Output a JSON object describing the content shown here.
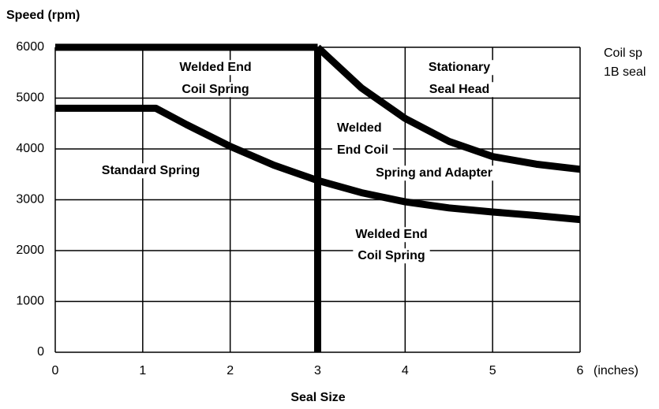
{
  "chart_data": {
    "type": "line",
    "y_label": "Speed (rpm)",
    "x_label": "Seal Size",
    "x_unit": "(inches)",
    "xlim": [
      0,
      6
    ],
    "xticks": [
      0,
      1,
      2,
      3,
      4,
      5,
      6
    ],
    "ylim": [
      0,
      6000
    ],
    "yticks": [
      0,
      1000,
      2000,
      3000,
      4000,
      5000,
      6000
    ],
    "grid": true,
    "series": [
      {
        "color": "#000000",
        "x": [
          0,
          3
        ],
        "values": [
          6000,
          6000
        ]
      },
      {
        "color": "#000000",
        "x": [
          3,
          3
        ],
        "values": [
          0,
          6000
        ]
      },
      {
        "color": "#000000",
        "x": [
          3,
          3.5,
          4,
          4.5,
          5,
          5.5,
          6
        ],
        "values": [
          6000,
          5200,
          4600,
          4150,
          3850,
          3700,
          3600
        ]
      },
      {
        "color": "#000000",
        "x": [
          0,
          1.15,
          1.5,
          2,
          2.5,
          3,
          3.5,
          4,
          4.5,
          5,
          5.5,
          6
        ],
        "values": [
          4800,
          4800,
          4480,
          4050,
          3680,
          3380,
          3140,
          2960,
          2840,
          2760,
          2690,
          2610
        ]
      }
    ],
    "annotations": [
      {
        "lines": [
          "Welded End",
          "Coil Spring"
        ]
      },
      {
        "lines": [
          "Stationary",
          "Seal Head"
        ]
      },
      {
        "lines": [
          "Standard Spring"
        ]
      },
      {
        "lines": [
          "Welded",
          "End Coil",
          "Spring and Adapter"
        ]
      },
      {
        "lines": [
          "Welded End",
          "Coil Spring"
        ]
      }
    ],
    "side_note": [
      "Coil sp",
      "1B seal"
    ]
  }
}
